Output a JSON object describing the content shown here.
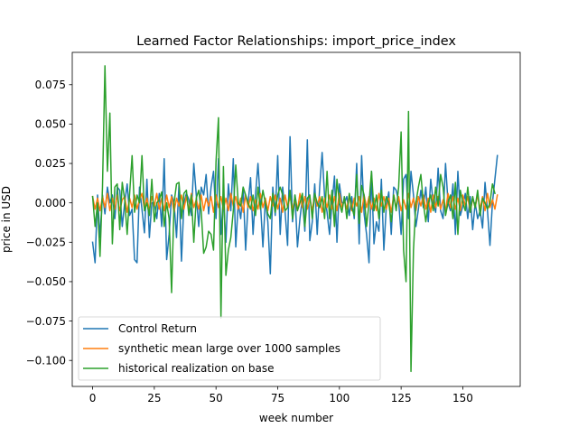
{
  "chart_data": {
    "type": "line",
    "title": "Learned Factor Relationships: import_price_index",
    "xlabel": "week number",
    "ylabel": "price in USD",
    "xlim": [
      -8.25,
      173.25
    ],
    "ylim": [
      -0.1165,
      0.0955
    ],
    "xticks": [
      0,
      25,
      50,
      75,
      100,
      125,
      150
    ],
    "xtick_labels": [
      "0",
      "25",
      "50",
      "75",
      "100",
      "125",
      "150"
    ],
    "yticks": [
      -0.1,
      -0.075,
      -0.05,
      -0.025,
      0.0,
      0.025,
      0.05,
      0.075
    ],
    "ytick_labels": [
      "−0.100",
      "−0.075",
      "−0.050",
      "−0.025",
      "0.000",
      "0.025",
      "0.050",
      "0.075"
    ],
    "grid": false,
    "legend_position": "lower left",
    "series": [
      {
        "name": "Control Return",
        "color": "#1f77b4",
        "values": [
          -0.025,
          -0.038,
          0.005,
          -0.022,
          0.005,
          -0.007,
          0.01,
          0.0,
          0.005,
          -0.01,
          0.01,
          0.008,
          -0.015,
          0.0,
          0.012,
          -0.008,
          -0.004,
          -0.036,
          -0.038,
          0.01,
          -0.004,
          -0.019,
          0.015,
          -0.022,
          0.0,
          0.0,
          -0.01,
          0.006,
          -0.015,
          0.028,
          -0.036,
          -0.02,
          0.005,
          0.0,
          -0.022,
          0.012,
          -0.037,
          0.0,
          0.006,
          0.002,
          -0.008,
          0.025,
          0.005,
          -0.015,
          0.01,
          0.005,
          0.018,
          -0.007,
          0.01,
          0.02,
          -0.01,
          0.028,
          -0.02,
          0.003,
          -0.025,
          0.012,
          -0.005,
          0.028,
          -0.028,
          0.0,
          -0.01,
          0.01,
          -0.03,
          0.0,
          0.016,
          -0.02,
          0.005,
          0.025,
          0.0,
          -0.028,
          0.002,
          -0.012,
          -0.045,
          0.01,
          -0.008,
          0.03,
          -0.02,
          0.01,
          -0.006,
          -0.027,
          0.042,
          -0.012,
          0.005,
          -0.028,
          -0.01,
          0.003,
          -0.018,
          0.04,
          -0.024,
          -0.012,
          0.012,
          -0.02,
          0.01,
          0.032,
          0.004,
          -0.006,
          -0.02,
          0.0,
          0.017,
          -0.025,
          0.012,
          0.0,
          0.0,
          0.004,
          -0.008,
          0.004,
          -0.01,
          0.025,
          -0.026,
          0.03,
          -0.007,
          -0.02,
          -0.038,
          0.02,
          -0.026,
          -0.012,
          -0.018,
          0.015,
          -0.03,
          -0.002,
          0.007,
          -0.02,
          0.01,
          0.008,
          0.001,
          -0.02,
          0.015,
          0.018,
          -0.01,
          0.02,
          0.005,
          -0.015,
          -0.004,
          0.008,
          -0.003,
          0.01,
          -0.012,
          0.015,
          0.0,
          -0.006,
          0.022,
          -0.005,
          -0.01,
          0.025,
          0.0,
          -0.005,
          0.012,
          -0.02,
          0.02,
          -0.008,
          -0.002,
          0.006,
          -0.01,
          0.004,
          -0.017,
          0.0,
          -0.01,
          -0.005,
          -0.016,
          0.013,
          -0.005,
          -0.027,
          0.0,
          0.015,
          0.03
        ]
      },
      {
        "name": "synthetic mean large over 1000 samples",
        "color": "#ff7f0e",
        "values": [
          0.004,
          -0.004,
          0.003,
          -0.005,
          0.004,
          -0.003,
          0.006,
          -0.005,
          0.003,
          -0.004,
          0.005,
          -0.005,
          0.002,
          0.004,
          -0.006,
          0.003,
          -0.003,
          0.005,
          -0.004,
          0.002,
          0.006,
          -0.004,
          0.003,
          -0.005,
          0.004,
          -0.002,
          0.006,
          -0.004,
          0.003,
          -0.005,
          0.005,
          -0.003,
          0.004,
          -0.006,
          0.003,
          -0.002,
          0.005,
          -0.004,
          0.004,
          -0.005,
          0.006,
          -0.003,
          0.002,
          -0.004,
          0.005,
          -0.005,
          0.003,
          -0.002,
          0.004,
          -0.006,
          0.005,
          -0.003,
          0.004,
          -0.004,
          0.003,
          -0.005,
          0.006,
          -0.002,
          0.004,
          -0.004,
          0.003,
          -0.006,
          0.005,
          -0.003,
          0.004,
          -0.005,
          0.002,
          -0.004,
          0.006,
          -0.003,
          0.003,
          -0.005,
          0.004,
          -0.002,
          0.005,
          -0.004,
          0.003,
          -0.006,
          0.005,
          -0.003,
          0.004,
          -0.004,
          0.002,
          -0.005,
          0.006,
          -0.003,
          0.004,
          -0.004,
          0.003,
          -0.005,
          0.005,
          -0.002,
          0.004,
          -0.006,
          0.003,
          -0.003,
          0.005,
          -0.004,
          0.004,
          -0.005,
          0.006,
          -0.003,
          0.002,
          -0.004,
          0.005,
          -0.005,
          0.003,
          -0.002,
          0.004,
          -0.006,
          0.005,
          -0.003,
          0.004,
          -0.004,
          0.003,
          -0.005,
          0.006,
          -0.002,
          0.004,
          -0.004,
          0.003,
          -0.006,
          0.005,
          -0.003,
          0.004,
          -0.005,
          0.002,
          -0.004,
          0.006,
          -0.003,
          0.003,
          -0.005,
          0.004,
          -0.002,
          0.005,
          -0.004,
          0.003,
          -0.006,
          0.005,
          -0.003,
          0.004,
          -0.004,
          0.002,
          -0.005,
          0.006,
          -0.003,
          0.004,
          -0.004,
          0.003,
          -0.005,
          0.005,
          -0.002,
          0.004,
          -0.006,
          0.003,
          -0.003,
          0.005,
          -0.004,
          0.004,
          -0.005,
          0.006,
          -0.003,
          0.002,
          -0.004,
          0.005
        ]
      },
      {
        "name": "historical realization on base",
        "color": "#2ca02c",
        "values": [
          0.004,
          -0.015,
          0.0,
          -0.034,
          0.01,
          0.087,
          0.02,
          0.057,
          -0.026,
          0.01,
          0.012,
          -0.017,
          0.013,
          0.002,
          -0.02,
          0.006,
          0.03,
          -0.006,
          0.005,
          0.0,
          0.03,
          -0.005,
          0.0,
          -0.008,
          0.015,
          -0.012,
          0.0,
          0.002,
          0.007,
          -0.015,
          0.0,
          -0.01,
          -0.057,
          0.0,
          0.012,
          0.013,
          -0.01,
          0.006,
          0.008,
          -0.008,
          0.005,
          -0.025,
          0.003,
          0.008,
          -0.005,
          -0.032,
          -0.028,
          -0.018,
          -0.02,
          -0.03,
          0.026,
          0.054,
          -0.073,
          0.023,
          -0.046,
          -0.03,
          -0.022,
          -0.005,
          0.024,
          0.0,
          -0.002,
          0.01,
          0.005,
          0.0,
          -0.004,
          0.005,
          -0.008,
          0.01,
          -0.004,
          0.008,
          0.0,
          -0.007,
          -0.01,
          0.006,
          -0.006,
          0.005,
          0.01,
          0.005,
          -0.005,
          -0.003,
          0.008,
          -0.01,
          0.005,
          -0.005,
          0.0,
          0.006,
          -0.015,
          0.003,
          0.005,
          -0.01,
          0.006,
          0.0,
          -0.003,
          0.004,
          -0.01,
          0.02,
          -0.01,
          0.008,
          -0.015,
          0.015,
          0.0,
          -0.006,
          0.004,
          -0.01,
          0.006,
          -0.003,
          -0.008,
          0.018,
          -0.013,
          0.011,
          0.005,
          -0.015,
          0.0,
          0.02,
          -0.005,
          0.005,
          -0.01,
          0.008,
          -0.006,
          0.004,
          0.0,
          -0.012,
          0.005,
          -0.005,
          0.01,
          0.045,
          -0.03,
          -0.05,
          0.058,
          -0.107,
          -0.03,
          0.0,
          0.01,
          0.018,
          0.0,
          -0.012,
          0.0,
          0.005,
          -0.005,
          0.01,
          -0.002,
          0.018,
          0.01,
          -0.008,
          0.0,
          0.005,
          -0.01,
          0.013,
          -0.02,
          0.008,
          0.0,
          -0.005,
          0.01,
          -0.006,
          0.004,
          -0.003,
          0.008,
          -0.008,
          0.003,
          0.0,
          -0.004,
          0.0,
          0.012,
          0.006
        ]
      }
    ]
  }
}
